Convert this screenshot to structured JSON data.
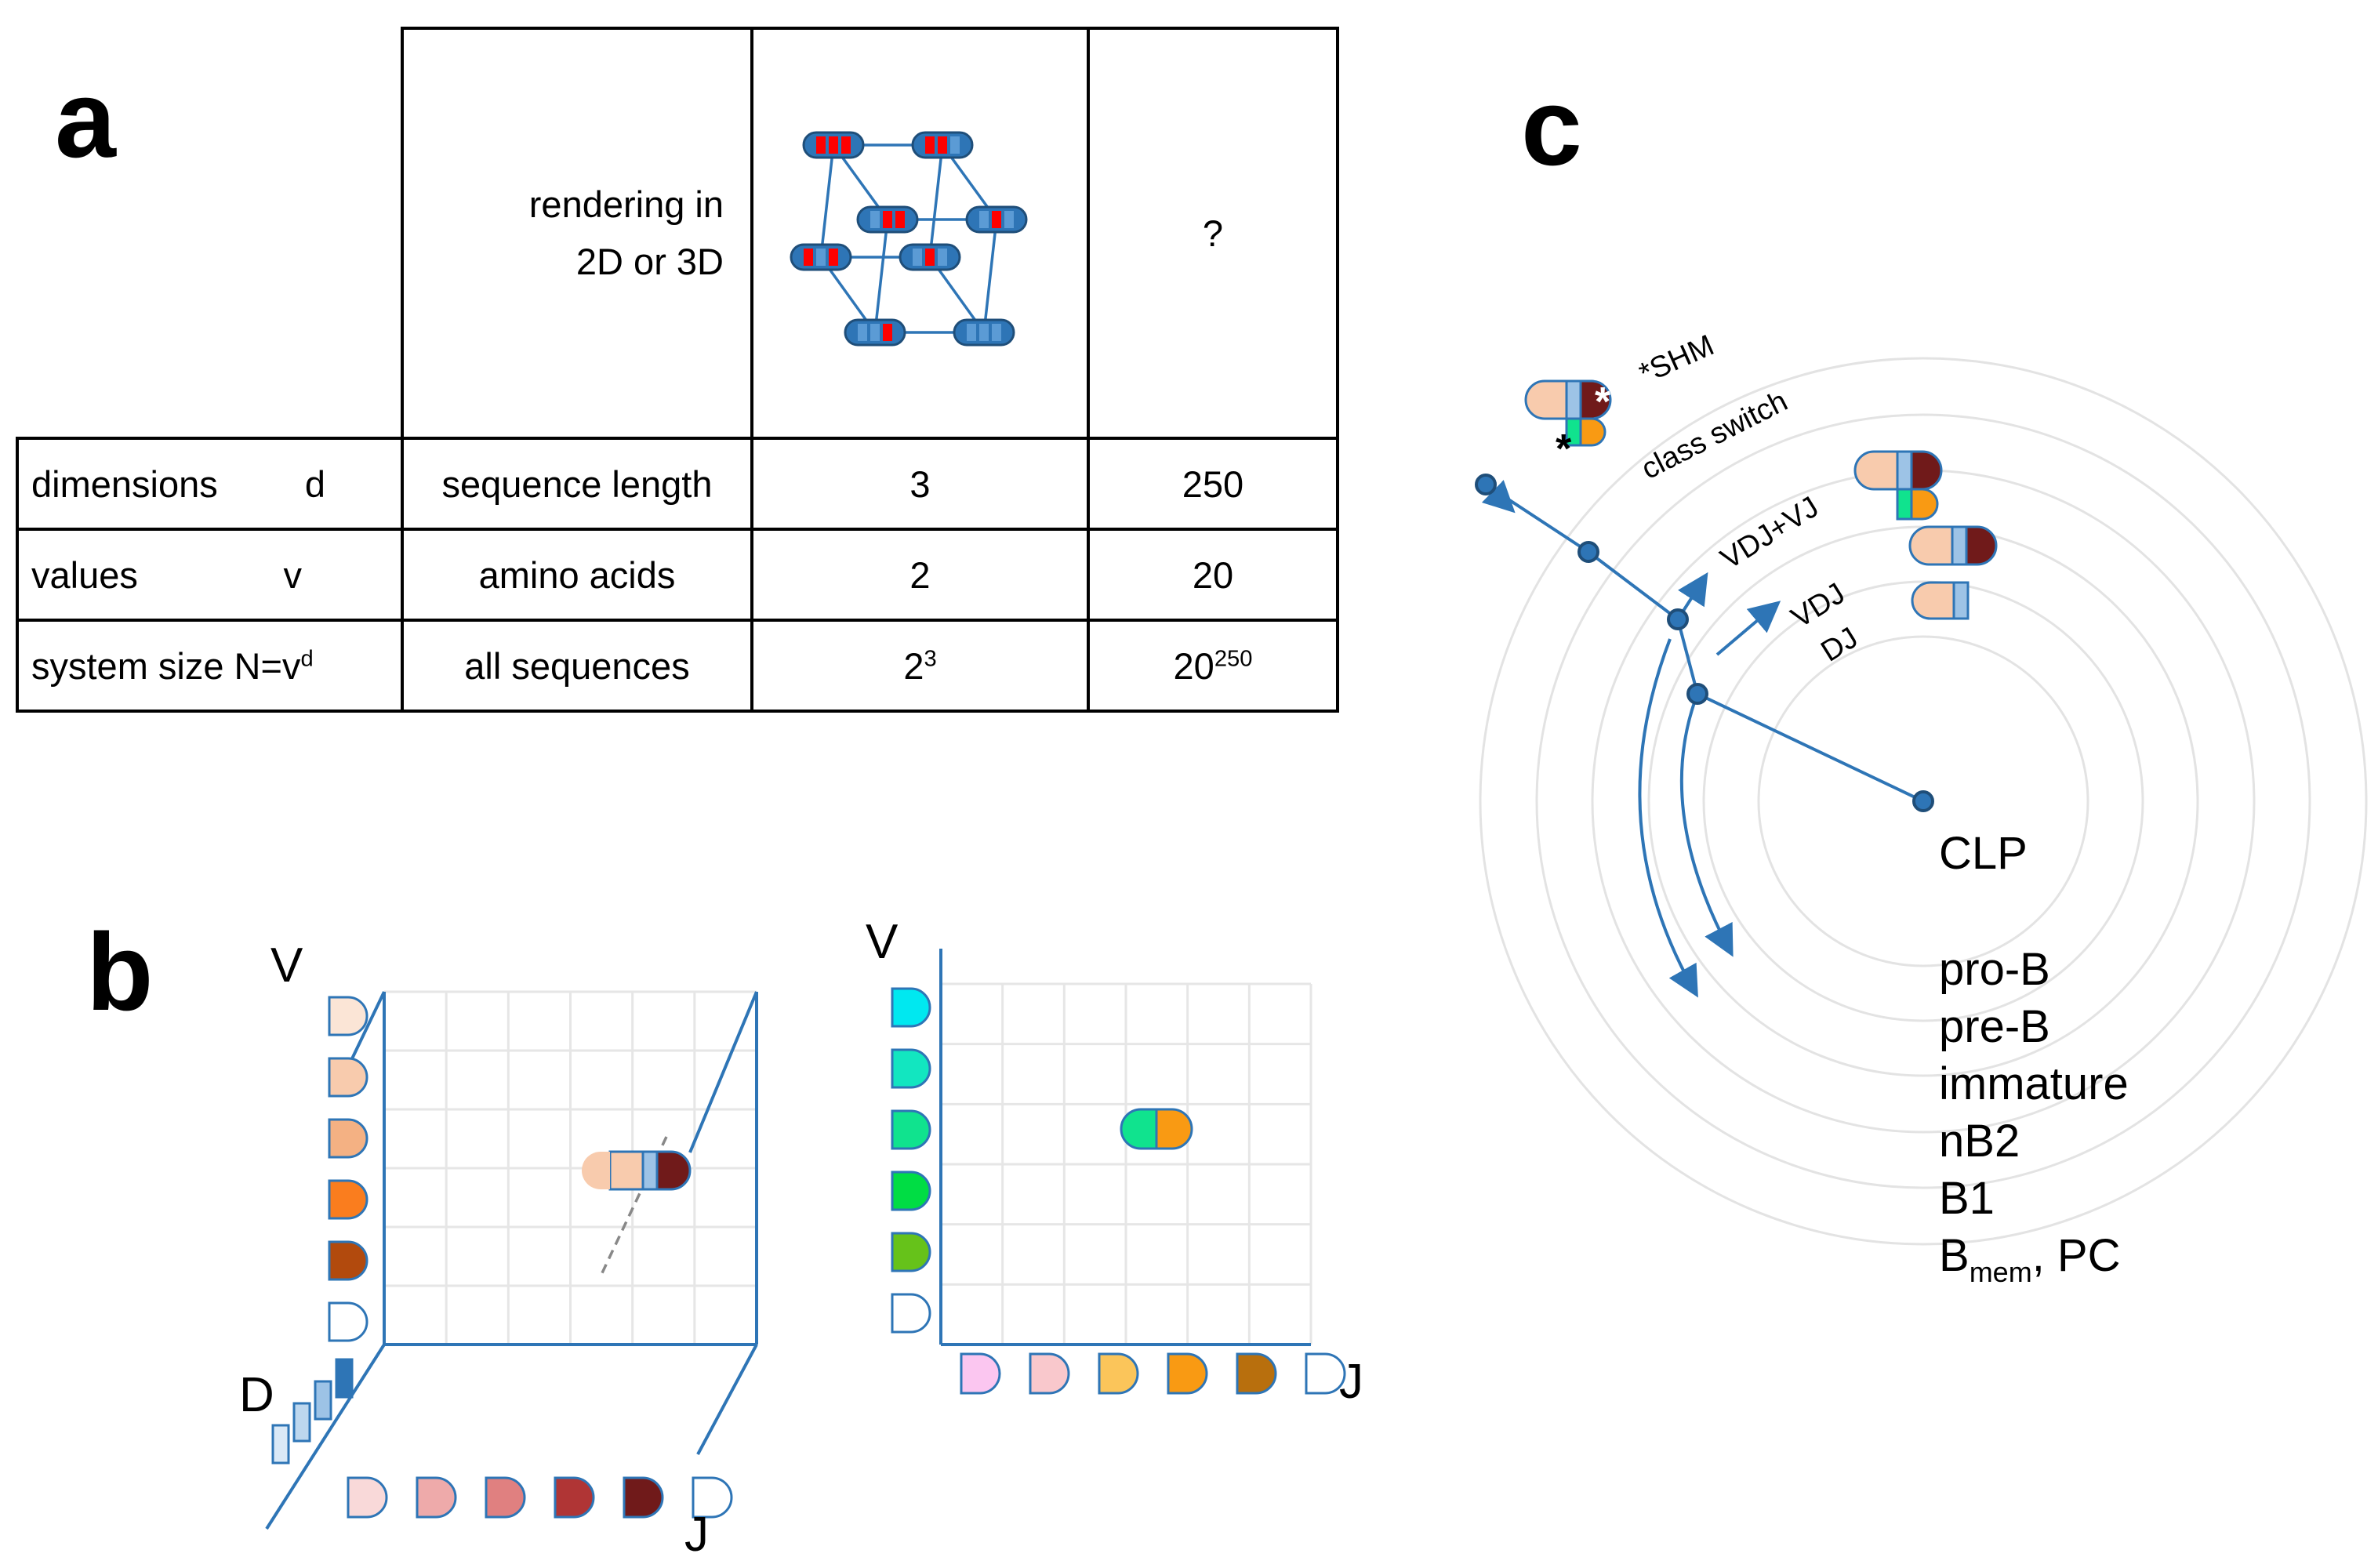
{
  "panels": {
    "a": "a",
    "b": "b",
    "c": "c"
  },
  "table": {
    "header_description": [
      "rendering in",
      "2D or 3D"
    ],
    "header_unknown": "?",
    "rows": [
      {
        "label": "dimensions",
        "symbol": "d",
        "property": "sequence length",
        "small": "3",
        "large": "250"
      },
      {
        "label": "values",
        "symbol": "v",
        "property": "amino acids",
        "small": "2",
        "large": "20"
      },
      {
        "label": "system size N=v",
        "symbol_sup": "d",
        "property": "all sequences",
        "small_base": "2",
        "small_exp": "3",
        "large_base": "20",
        "large_exp": "250"
      }
    ]
  },
  "panel_b": {
    "left_axes": {
      "v": "V",
      "d": "D",
      "j": "J"
    },
    "right_axes": {
      "v": "V",
      "j": "J"
    },
    "v_colors_left": [
      "#fbe5d6",
      "#f8cbad",
      "#f4b183",
      "#fa7d1e",
      "#b24a0d",
      "#ffffff"
    ],
    "d_colors": [
      "#dae9f7",
      "#bdd7ee",
      "#9dc3e6",
      "#2e75b6"
    ],
    "j_colors_left": [
      "#f9d9d9",
      "#eeaaaa",
      "#e08080",
      "#b03535",
      "#701a1a",
      "#ffffff"
    ],
    "v_colors_right": [
      "#00e8f0",
      "#12e6c0",
      "#10e38e",
      "#00dd44",
      "#66c21a",
      "#ffffff"
    ],
    "j_colors_right": [
      "#fbc6f0",
      "#f9c8cc",
      "#fbc55a",
      "#f99a13",
      "#b86f0d",
      "#ffffff"
    ]
  },
  "panel_c": {
    "ring_labels": [
      "*SHM",
      "class switch",
      "VDJ+VJ",
      "VDJ",
      "DJ"
    ],
    "root": "CLP",
    "stages": [
      "pro-B",
      "pre-B",
      "immature",
      "nB2",
      "B1"
    ],
    "last_stage": {
      "base": "B",
      "sub": "mem",
      "tail": ", PC"
    },
    "mutation_marker": "*"
  }
}
